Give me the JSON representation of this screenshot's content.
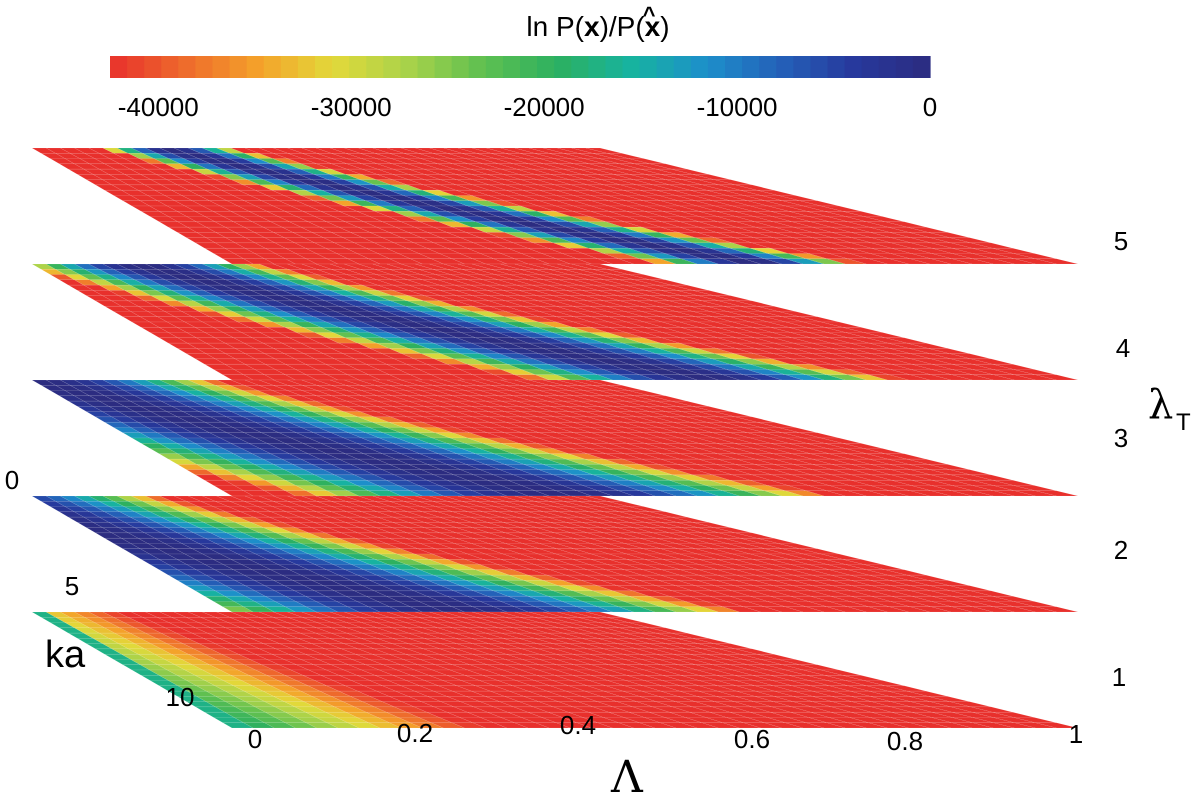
{
  "chart_data": {
    "type": "heatmap",
    "title_parts": {
      "prefix": "ln P(",
      "x1": "x",
      "mid": ")/P(",
      "hat": "^",
      "x2": "x",
      "suffix": ")"
    },
    "colorbar": {
      "ticks": [
        "-40000",
        "-30000",
        "-20000",
        "-10000",
        "0"
      ],
      "tick_values": [
        -40000,
        -30000,
        -20000,
        -10000,
        0
      ],
      "range": [
        -42500,
        0
      ],
      "colormap": [
        "#e8302c",
        "#ee6a2c",
        "#f4a22a",
        "#e2d93a",
        "#a8d24a",
        "#5fc050",
        "#2cb060",
        "#17b3a0",
        "#1d8fcb",
        "#2460b8",
        "#27389c",
        "#2c2c80"
      ]
    },
    "x_axis": {
      "label": "Λ",
      "ticks": [
        "0",
        "0.2",
        "0.4",
        "0.6",
        "0.8",
        "1"
      ],
      "tick_values": [
        0,
        0.2,
        0.4,
        0.6,
        0.8,
        1
      ],
      "range": [
        0,
        1
      ]
    },
    "ka_axis": {
      "label": "ka",
      "ticks": [
        "0",
        "5",
        "10"
      ],
      "tick_values": [
        0,
        5,
        10
      ],
      "range": [
        0,
        10
      ]
    },
    "lambda_axis": {
      "label": "λ",
      "subscript": "T",
      "ticks": [
        "1",
        "2",
        "3",
        "4",
        "5"
      ]
    },
    "layers": [
      {
        "lambda_T": 1,
        "peak_offset": 0.0,
        "width": 0.3
      },
      {
        "lambda_T": 2,
        "peak_offset": 0.28,
        "width": 0.34
      },
      {
        "lambda_T": 3,
        "peak_offset": 0.4,
        "width": 0.32
      },
      {
        "lambda_T": 4,
        "peak_offset": 0.58,
        "width": 0.22
      },
      {
        "lambda_T": 5,
        "peak_offset": 0.63,
        "width": 0.12
      }
    ],
    "value_floor": -42500,
    "grid": {
      "nx": 40,
      "nk": 22
    }
  }
}
